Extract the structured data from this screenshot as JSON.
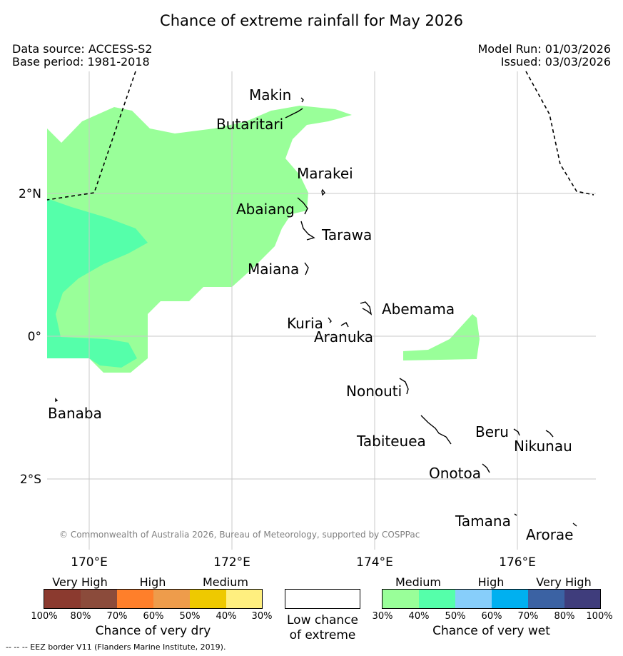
{
  "title": "Chance of extreme rainfall for May 2026",
  "data_source": "Data source: ACCESS-S2",
  "base_period": "Base period: 1981-2018",
  "model_run": "Model Run: 01/03/2026",
  "issued": "Issued: 03/03/2026",
  "copyright": "© Commonwealth of Australia 2026, Bureau of Meteorology, supported by COSPPac",
  "map": {
    "lon_ticks": [
      "170°E",
      "172°E",
      "174°E",
      "176°E"
    ],
    "lat_ticks": [
      "2°N",
      "0°",
      "2°S"
    ],
    "islands": {
      "makin": "Makin",
      "butaritari": "Butaritari",
      "marakei": "Marakei",
      "abaiang": "Abaiang",
      "tarawa": "Tarawa",
      "maiana": "Maiana",
      "abemama": "Abemama",
      "kuria": "Kuria",
      "aranuka": "Aranuka",
      "nonouti": "Nonouti",
      "banaba": "Banaba",
      "tabiteuea": "Tabiteuea",
      "beru": "Beru",
      "nikunau": "Nikunau",
      "onotoa": "Onotoa",
      "tamana": "Tamana",
      "arorae": "Arorae"
    },
    "colors": {
      "wet_medium": "#99ff99",
      "wet_medium_high": "#55ffaa",
      "grid": "#c8c8c8",
      "coast": "#000000"
    }
  },
  "legend": {
    "dry": {
      "groups": [
        "Very High",
        "High",
        "Medium"
      ],
      "ticks": [
        "100%",
        "80%",
        "70%",
        "60%",
        "50%",
        "40%",
        "30%"
      ],
      "colors": [
        "#8b3a2f",
        "#8b4b3b",
        "#ff7f2a",
        "#ee9c4b",
        "#eec900",
        "#ffef7f"
      ],
      "title": "Chance of very dry"
    },
    "neutral": {
      "label_line1": "Low chance",
      "label_line2": "of extreme",
      "color": "#ffffff"
    },
    "wet": {
      "groups": [
        "Medium",
        "High",
        "Very High"
      ],
      "ticks": [
        "30%",
        "40%",
        "50%",
        "60%",
        "70%",
        "80%",
        "100%"
      ],
      "colors": [
        "#99ff99",
        "#55ffaa",
        "#87cefa",
        "#00b0f0",
        "#3b62a3",
        "#3f3d7c"
      ],
      "title": "Chance of very wet"
    }
  },
  "footer": "--  --  -- EEZ border V11 (Flanders Marine Institute, 2019)."
}
